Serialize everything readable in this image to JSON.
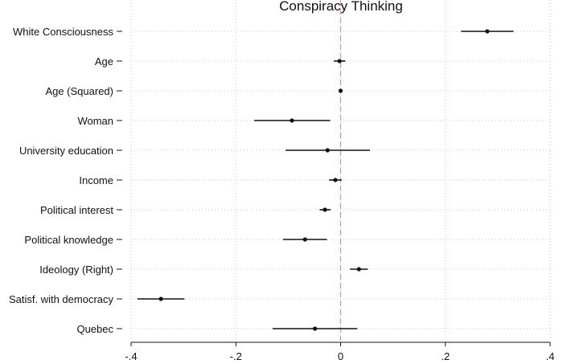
{
  "chart_data": {
    "type": "coefficient-plot",
    "title": "Conspiracy Thinking",
    "xlim": [
      -0.4,
      0.4
    ],
    "xticks": [
      -0.4,
      -0.2,
      0,
      0.2,
      0.4
    ],
    "xtick_labels": [
      "-.4",
      "-.2",
      "0",
      ".2",
      ".4"
    ],
    "reference_line": 0,
    "grid": true,
    "rows": [
      {
        "label": "White Consciousness",
        "estimate": 0.28,
        "ci_low": 0.23,
        "ci_high": 0.33
      },
      {
        "label": "Age",
        "estimate": -0.002,
        "ci_low": -0.013,
        "ci_high": 0.009
      },
      {
        "label": "Age (Squared)",
        "estimate": 0.0,
        "ci_low": -0.001,
        "ci_high": 0.001
      },
      {
        "label": "Woman",
        "estimate": -0.093,
        "ci_low": -0.165,
        "ci_high": -0.02
      },
      {
        "label": "University education",
        "estimate": -0.025,
        "ci_low": -0.105,
        "ci_high": 0.056
      },
      {
        "label": "Income",
        "estimate": -0.01,
        "ci_low": -0.022,
        "ci_high": 0.002
      },
      {
        "label": "Political interest",
        "estimate": -0.03,
        "ci_low": -0.04,
        "ci_high": -0.019
      },
      {
        "label": "Political knowledge",
        "estimate": -0.068,
        "ci_low": -0.11,
        "ci_high": -0.026
      },
      {
        "label": "Ideology (Right)",
        "estimate": 0.035,
        "ci_low": 0.018,
        "ci_high": 0.052
      },
      {
        "label": "Satisf. with democracy",
        "estimate": -0.343,
        "ci_low": -0.388,
        "ci_high": -0.298
      },
      {
        "label": "Quebec",
        "estimate": -0.049,
        "ci_low": -0.13,
        "ci_high": 0.032
      }
    ]
  }
}
